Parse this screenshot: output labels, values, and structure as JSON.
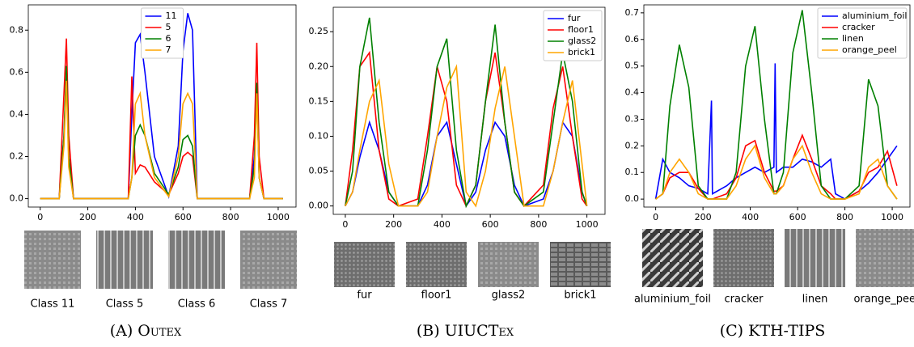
{
  "chart_data": [
    {
      "type": "line",
      "caption": "(A) Outex",
      "legend": "upper center",
      "x": [
        0,
        80,
        100,
        110,
        120,
        140,
        370,
        385,
        400,
        420,
        440,
        480,
        540,
        580,
        600,
        620,
        640,
        660,
        880,
        900,
        910,
        920,
        940,
        1020
      ],
      "series": [
        {
          "name": "11",
          "color": "#0000ff",
          "values": [
            0,
            0,
            0.3,
            0.6,
            0.2,
            0,
            0,
            0.4,
            0.74,
            0.78,
            0.6,
            0.2,
            0.01,
            0.25,
            0.7,
            0.88,
            0.8,
            0,
            0,
            0.2,
            0.55,
            0.1,
            0,
            0
          ]
        },
        {
          "name": "5",
          "color": "#ff0000",
          "values": [
            0,
            0,
            0.5,
            0.76,
            0.3,
            0,
            0,
            0.58,
            0.12,
            0.16,
            0.15,
            0.08,
            0.02,
            0.12,
            0.2,
            0.22,
            0.2,
            0,
            0,
            0.3,
            0.74,
            0.2,
            0,
            0
          ]
        },
        {
          "name": "6",
          "color": "#008000",
          "values": [
            0,
            0,
            0.3,
            0.63,
            0.2,
            0,
            0,
            0.1,
            0.3,
            0.35,
            0.3,
            0.12,
            0.02,
            0.15,
            0.28,
            0.3,
            0.25,
            0,
            0,
            0.15,
            0.55,
            0.1,
            0,
            0
          ]
        },
        {
          "name": "7",
          "color": "#ffa500",
          "values": [
            0,
            0,
            0.25,
            0.56,
            0.15,
            0,
            0,
            0.1,
            0.45,
            0.5,
            0.3,
            0.1,
            0.01,
            0.2,
            0.45,
            0.5,
            0.45,
            0,
            0,
            0.1,
            0.5,
            0.1,
            0,
            0
          ]
        }
      ],
      "xlim": [
        -50,
        1075
      ],
      "xticks": [
        0,
        200,
        400,
        600,
        800,
        1000
      ],
      "ylim": [
        -0.04,
        0.92
      ],
      "yticks": [
        {
          "value": 0,
          "label": "0.0"
        },
        0.2,
        0.4,
        0.6,
        0.8
      ],
      "image_labels": [
        "Class 11",
        "Class 5",
        "Class 6",
        "Class 7"
      ]
    },
    {
      "type": "line",
      "caption": "(B) UIUCTex",
      "legend": "upper right",
      "x": [
        0,
        30,
        60,
        100,
        140,
        180,
        220,
        300,
        340,
        380,
        420,
        460,
        500,
        540,
        580,
        620,
        660,
        700,
        740,
        820,
        860,
        900,
        940,
        980,
        1000
      ],
      "series": [
        {
          "name": "fur",
          "color": "#0000ff",
          "values": [
            0,
            0.02,
            0.07,
            0.12,
            0.08,
            0.02,
            0,
            0,
            0.03,
            0.1,
            0.12,
            0.06,
            0,
            0.02,
            0.08,
            0.12,
            0.1,
            0.03,
            0,
            0.01,
            0.05,
            0.12,
            0.1,
            0.02,
            0
          ]
        },
        {
          "name": "floor1",
          "color": "#ff0000",
          "values": [
            0,
            0.08,
            0.2,
            0.22,
            0.08,
            0.01,
            0,
            0.01,
            0.1,
            0.2,
            0.15,
            0.03,
            0,
            0.03,
            0.15,
            0.22,
            0.12,
            0.02,
            0,
            0.03,
            0.14,
            0.2,
            0.1,
            0.01,
            0
          ]
        },
        {
          "name": "glass2",
          "color": "#008000",
          "values": [
            0,
            0.05,
            0.2,
            0.27,
            0.12,
            0.02,
            0,
            0,
            0.08,
            0.2,
            0.24,
            0.08,
            0,
            0.03,
            0.15,
            0.26,
            0.12,
            0.02,
            0,
            0.02,
            0.12,
            0.22,
            0.15,
            0.02,
            0
          ]
        },
        {
          "name": "brick1",
          "color": "#ffa500",
          "values": [
            0,
            0.02,
            0.08,
            0.15,
            0.18,
            0.06,
            0,
            0,
            0.02,
            0.1,
            0.17,
            0.2,
            0.02,
            0,
            0.05,
            0.14,
            0.2,
            0.1,
            0,
            0,
            0.05,
            0.12,
            0.18,
            0.06,
            0
          ]
        }
      ],
      "xlim": [
        -50,
        1075
      ],
      "xticks": [
        0,
        200,
        400,
        600,
        800,
        1000
      ],
      "ylim": [
        -0.012,
        0.285
      ],
      "yticks": [
        {
          "value": 0,
          "label": "0.00"
        },
        0.05,
        {
          "value": 0.1,
          "label": "0.10"
        },
        0.15,
        {
          "value": 0.2,
          "label": "0.20"
        },
        0.25
      ],
      "image_labels": [
        "fur",
        "floor1",
        "glass2",
        "brick1"
      ]
    },
    {
      "type": "line",
      "caption": "(C) KTH-TIPS",
      "legend": "upper right",
      "x": [
        0,
        30,
        60,
        100,
        140,
        180,
        220,
        236,
        240,
        300,
        340,
        380,
        420,
        460,
        500,
        505,
        510,
        540,
        580,
        620,
        660,
        700,
        740,
        760,
        800,
        860,
        900,
        940,
        980,
        1020
      ],
      "series": [
        {
          "name": "aluminium_foil",
          "color": "#0000ff",
          "values": [
            0,
            0.15,
            0.1,
            0.08,
            0.05,
            0.04,
            0.02,
            0.37,
            0.02,
            0.05,
            0.08,
            0.1,
            0.12,
            0.1,
            0.12,
            0.51,
            0.1,
            0.12,
            0.12,
            0.15,
            0.14,
            0.12,
            0.15,
            0.02,
            0,
            0.03,
            0.06,
            0.1,
            0.15,
            0.2
          ]
        },
        {
          "name": "cracker",
          "color": "#ff0000",
          "values": [
            0,
            0.02,
            0.08,
            0.1,
            0.1,
            0.04,
            0,
            0,
            0,
            0.02,
            0.08,
            0.2,
            0.22,
            0.1,
            0.03,
            0.03,
            0.03,
            0.05,
            0.15,
            0.24,
            0.15,
            0.05,
            0.02,
            0,
            0,
            0.03,
            0.1,
            0.12,
            0.18,
            0.05
          ]
        },
        {
          "name": "linen",
          "color": "#008000",
          "values": [
            0,
            0.02,
            0.35,
            0.58,
            0.42,
            0.05,
            0,
            0,
            0,
            0,
            0.1,
            0.5,
            0.65,
            0.3,
            0.02,
            0.02,
            0.02,
            0.1,
            0.55,
            0.71,
            0.4,
            0.05,
            0,
            0,
            0,
            0.05,
            0.45,
            0.35,
            0.05,
            0
          ]
        },
        {
          "name": "orange_peel",
          "color": "#ffa500",
          "values": [
            0,
            0.02,
            0.1,
            0.15,
            0.1,
            0.02,
            0,
            0,
            0,
            0,
            0.05,
            0.15,
            0.2,
            0.08,
            0.02,
            0.02,
            0.02,
            0.05,
            0.15,
            0.2,
            0.1,
            0.02,
            0,
            0,
            0,
            0.02,
            0.12,
            0.15,
            0.05,
            0
          ]
        }
      ],
      "xlim": [
        -50,
        1075
      ],
      "xticks": [
        0,
        200,
        400,
        600,
        800,
        1000
      ],
      "ylim": [
        -0.03,
        0.73
      ],
      "yticks": [
        {
          "value": 0,
          "label": "0.0"
        },
        0.1,
        0.2,
        0.3,
        0.4,
        0.5,
        0.6,
        0.7
      ],
      "image_labels": [
        "aluminium_foil",
        "cracker",
        "linen",
        "orange_peel"
      ]
    }
  ]
}
